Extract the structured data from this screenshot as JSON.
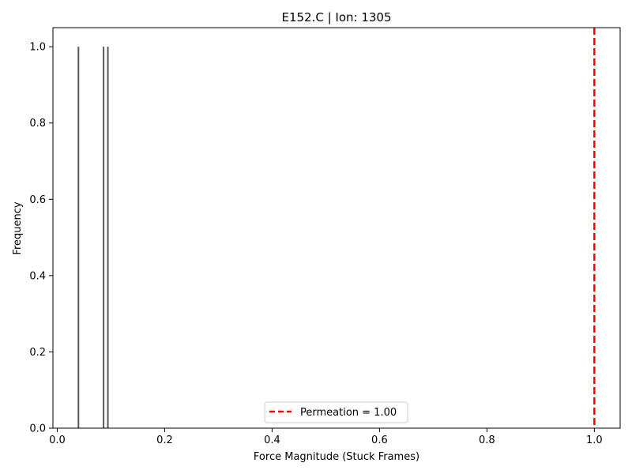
{
  "chart_data": {
    "type": "bar",
    "title": "E152.C | Ion: 1305",
    "xlabel": "Force Magnitude (Stuck Frames)",
    "ylabel": "Frequency",
    "xlim": [
      -0.008,
      1.048
    ],
    "ylim": [
      0,
      1.05
    ],
    "xticks": [
      {
        "value": 0.0,
        "label": "0.0"
      },
      {
        "value": 0.2,
        "label": "0.2"
      },
      {
        "value": 0.4,
        "label": "0.4"
      },
      {
        "value": 0.6,
        "label": "0.6"
      },
      {
        "value": 0.8,
        "label": "0.8"
      },
      {
        "value": 1.0,
        "label": "1.0"
      }
    ],
    "yticks": [
      {
        "value": 0.0,
        "label": "0.0"
      },
      {
        "value": 0.2,
        "label": "0.2"
      },
      {
        "value": 0.4,
        "label": "0.4"
      },
      {
        "value": 0.6,
        "label": "0.6"
      },
      {
        "value": 0.8,
        "label": "0.8"
      },
      {
        "value": 1.0,
        "label": "1.0"
      }
    ],
    "bars": [
      {
        "x": 0.0395,
        "height": 1
      },
      {
        "x": 0.0863,
        "height": 1
      },
      {
        "x": 0.0943,
        "height": 1
      }
    ],
    "bar_color": "#3a3a3a",
    "reference_line": {
      "x": 1.0,
      "label": "Permeation = 1.00",
      "color": "#ff0000",
      "style": "dashed"
    },
    "legend_placement": "lower-center",
    "grid": false
  }
}
